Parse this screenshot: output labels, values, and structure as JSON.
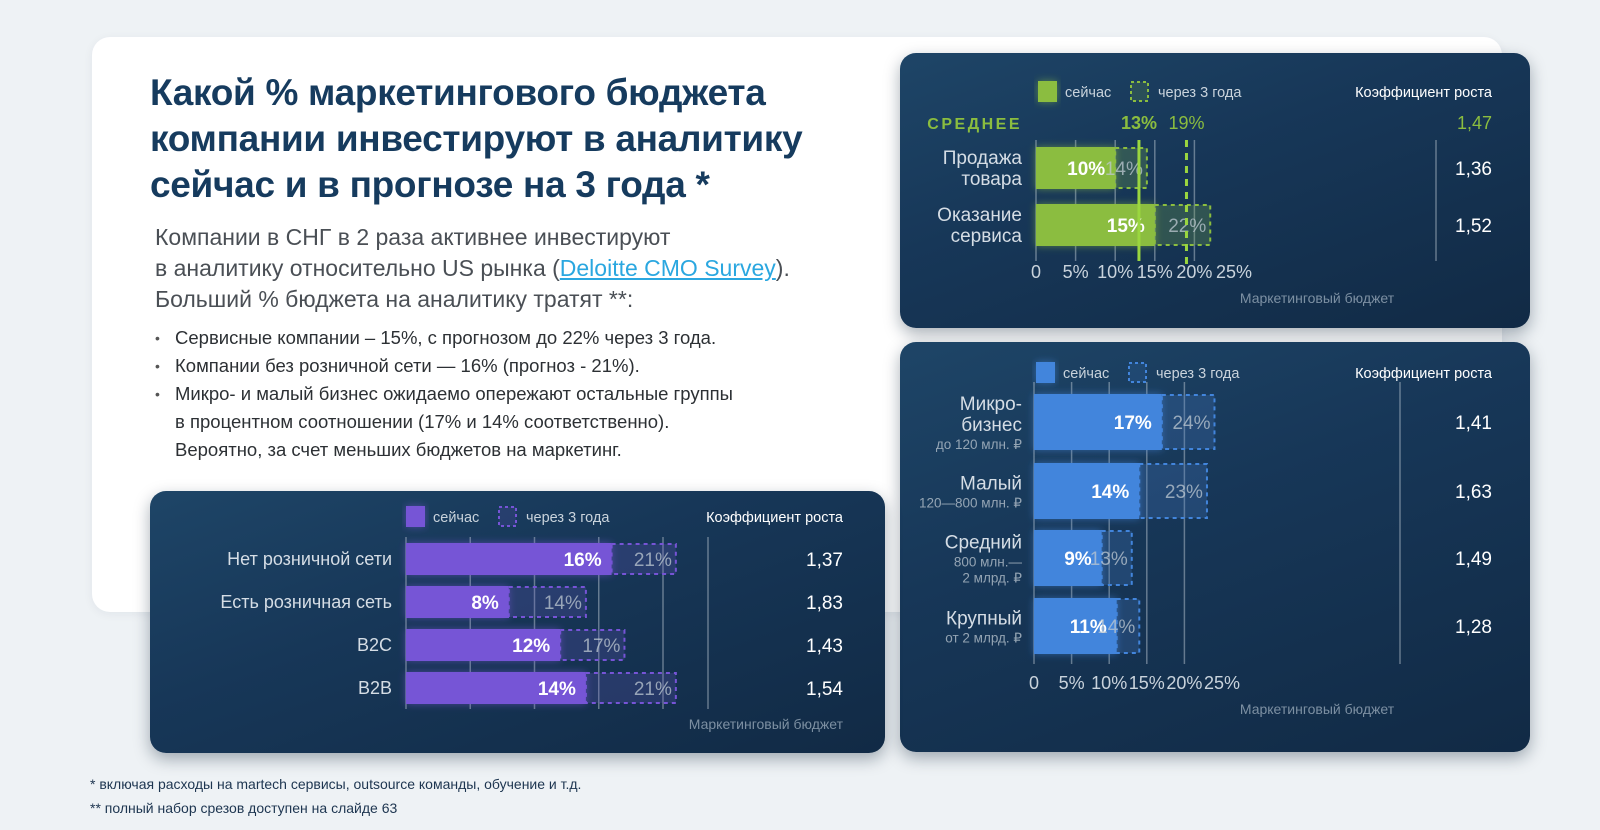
{
  "title": "Какой % маркетингового бюджета компании инвестируют в аналитику сейчас и в прогнозе на 3 года *",
  "intro": {
    "line1": "Компании в СНГ в 2 раза активнее инвестируют",
    "line2_before": "в аналитику относительно US рынка (",
    "link": "Deloitte CMO Survey",
    "line2_after": ").",
    "line3": "Больший % бюджета на аналитику тратят **:"
  },
  "bullets": [
    {
      "text": "Сервисные компании – 15%, с прогнозом до 22% через 3 года."
    },
    {
      "text": "Компании без розничной сети — 16% (прогноз - 21%)."
    },
    {
      "text": "Микро- и малый бизнес ожидаемо опережают остальные группы",
      "cont1": "в процентном соотношении (17% и 14% соответственно).",
      "cont2": "Вероятно, за счет меньших бюджетов на маркетинг."
    }
  ],
  "footnotes": [
    "* включая расходы на martech сервисы, outsource команды, обучение и т.д.",
    "** полный набор срезов доступен на слайде 63"
  ],
  "colors": {
    "green": "#8bbd3f",
    "blue": "#4285dc",
    "purple": "#7654d6",
    "title": "#163b5e",
    "link": "#2aa7e0"
  },
  "chart_data": [
    {
      "id": "green",
      "type": "bar",
      "orientation": "horizontal",
      "legend": {
        "now": "сейчас",
        "future": "через 3 года",
        "growth_header": "Коэффициент роста"
      },
      "average": {
        "label": "СРЕДНЕЕ",
        "now": 13,
        "now_label": "13%",
        "future": 19,
        "future_label": "19%",
        "growth": "1,47"
      },
      "categories": [
        {
          "label": [
            "Продажа",
            "товара"
          ],
          "sub": []
        },
        {
          "label": [
            "Оказание",
            "сервиса"
          ],
          "sub": []
        }
      ],
      "series": [
        {
          "name": "сейчас",
          "values": [
            10,
            15
          ],
          "labels": [
            "10%",
            "15%"
          ]
        },
        {
          "name": "через 3 года",
          "values": [
            14,
            22
          ],
          "labels": [
            "14%",
            "22%"
          ]
        }
      ],
      "growth": [
        "1,36",
        "1,52"
      ],
      "xticks": [
        "0",
        "5%",
        "10%",
        "15%",
        "20%",
        "25%"
      ],
      "xlim": [
        0,
        25
      ],
      "xlabel": "Маркетинговый бюджет"
    },
    {
      "id": "blue",
      "type": "bar",
      "orientation": "horizontal",
      "legend": {
        "now": "сейчас",
        "future": "через 3 года",
        "growth_header": "Коэффициент роста"
      },
      "categories": [
        {
          "label": [
            "Микро-",
            "бизнес"
          ],
          "sub": [
            "до 120 млн. ₽"
          ]
        },
        {
          "label": [
            "Малый"
          ],
          "sub": [
            "120—800 млн. ₽"
          ]
        },
        {
          "label": [
            "Средний"
          ],
          "sub": [
            "800  млн.—",
            "2 млрд. ₽"
          ]
        },
        {
          "label": [
            "Крупный"
          ],
          "sub": [
            "от 2 млрд. ₽"
          ]
        }
      ],
      "series": [
        {
          "name": "сейчас",
          "values": [
            17,
            14,
            9,
            11
          ],
          "labels": [
            "17%",
            "14%",
            "9%",
            "11%"
          ]
        },
        {
          "name": "через 3 года",
          "values": [
            24,
            23,
            13,
            14
          ],
          "labels": [
            "24%",
            "23%",
            "13%",
            "14%"
          ]
        }
      ],
      "growth": [
        "1,41",
        "1,63",
        "1,49",
        "1,28"
      ],
      "xticks": [
        "0",
        "5%",
        "10%",
        "15%",
        "20%",
        "25%"
      ],
      "xlim": [
        0,
        25
      ],
      "xlabel": "Маркетинговый бюджет"
    },
    {
      "id": "purple",
      "type": "bar",
      "orientation": "horizontal",
      "legend": {
        "now": "сейчас",
        "future": "через 3 года",
        "growth_header": "Коэффициент роста"
      },
      "categories": [
        {
          "label": [
            "Нет розничной сети"
          ],
          "sub": []
        },
        {
          "label": [
            "Есть розничная сеть"
          ],
          "sub": []
        },
        {
          "label": [
            "B2C"
          ],
          "sub": []
        },
        {
          "label": [
            "B2B"
          ],
          "sub": []
        }
      ],
      "series": [
        {
          "name": "сейчас",
          "values": [
            16,
            8,
            12,
            14
          ],
          "labels": [
            "16%",
            "8%",
            "12%",
            "14%"
          ]
        },
        {
          "name": "через 3 года",
          "values": [
            21,
            14,
            17,
            21
          ],
          "labels": [
            "21%",
            "14%",
            "17%",
            "21%"
          ]
        }
      ],
      "growth": [
        "1,37",
        "1,83",
        "1,43",
        "1,54"
      ],
      "xticks": [],
      "xlim": [
        0,
        20
      ],
      "xlabel": "Маркетинговый бюджет"
    }
  ]
}
